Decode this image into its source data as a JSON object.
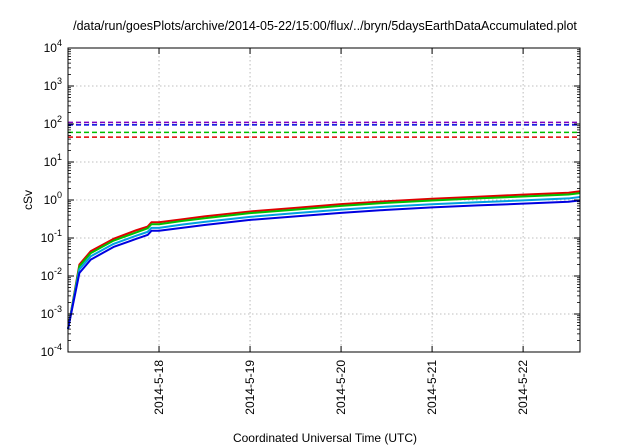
{
  "chart_data": {
    "type": "line",
    "title": "/data/run/goesPlots/archive/2014-05-22/15:00/flux/../bryn/5daysEarthDataAccumulated.plot",
    "xlabel": "Coordinated Universal Time (UTC)",
    "ylabel": "cSv",
    "yscale": "log",
    "ylim": [
      0.0001,
      10000
    ],
    "y_ticks": [
      {
        "exp": "-4",
        "value": 0.0001
      },
      {
        "exp": "-3",
        "value": 0.001
      },
      {
        "exp": "-2",
        "value": 0.01
      },
      {
        "exp": "-1",
        "value": 0.1
      },
      {
        "exp": "0",
        "value": 1
      },
      {
        "exp": "1",
        "value": 10
      },
      {
        "exp": "2",
        "value": 100
      },
      {
        "exp": "3",
        "value": 1000
      },
      {
        "exp": "4",
        "value": 10000
      }
    ],
    "xlim": [
      "2014-05-17 00:00",
      "2014-05-22 15:00"
    ],
    "x_ticks": [
      "2014-5-18",
      "2014-5-19",
      "2014-5-20",
      "2014-5-21",
      "2014-5-22"
    ],
    "grid": true,
    "x": [
      "2014-05-17 00:00",
      "2014-05-17 03:00",
      "2014-05-17 06:00",
      "2014-05-17 12:00",
      "2014-05-17 18:00",
      "2014-05-17 21:00",
      "2014-05-17 22:00",
      "2014-05-18 00:00",
      "2014-05-18 06:00",
      "2014-05-18 12:00",
      "2014-05-19 00:00",
      "2014-05-19 12:00",
      "2014-05-20 00:00",
      "2014-05-20 12:00",
      "2014-05-21 00:00",
      "2014-05-21 12:00",
      "2014-05-22 00:00",
      "2014-05-22 12:00",
      "2014-05-22 15:00"
    ],
    "series": [
      {
        "color": "#e00000",
        "width": 2,
        "dashed": false,
        "values": [
          0.0004,
          0.02,
          0.045,
          0.095,
          0.16,
          0.2,
          0.26,
          0.26,
          0.31,
          0.37,
          0.5,
          0.62,
          0.78,
          0.93,
          1.08,
          1.22,
          1.38,
          1.55,
          1.7
        ]
      },
      {
        "color": "#00c000",
        "width": 2,
        "dashed": false,
        "values": [
          0.0004,
          0.018,
          0.04,
          0.085,
          0.14,
          0.18,
          0.23,
          0.23,
          0.28,
          0.33,
          0.45,
          0.56,
          0.7,
          0.84,
          0.97,
          1.1,
          1.24,
          1.4,
          1.52
        ]
      },
      {
        "color": "#00a0e0",
        "width": 2,
        "dashed": false,
        "values": [
          0.0004,
          0.015,
          0.033,
          0.07,
          0.115,
          0.145,
          0.185,
          0.185,
          0.225,
          0.265,
          0.36,
          0.45,
          0.56,
          0.67,
          0.77,
          0.87,
          0.98,
          1.1,
          1.2
        ]
      },
      {
        "color": "#0000e0",
        "width": 2,
        "dashed": false,
        "values": [
          0.0004,
          0.012,
          0.027,
          0.058,
          0.095,
          0.12,
          0.155,
          0.155,
          0.185,
          0.22,
          0.3,
          0.37,
          0.46,
          0.55,
          0.64,
          0.72,
          0.8,
          0.9,
          0.98
        ]
      },
      {
        "color": "#e00000",
        "width": 1.5,
        "dashed": true,
        "constant": 45
      },
      {
        "color": "#00c000",
        "width": 1.5,
        "dashed": true,
        "constant": 60
      },
      {
        "color": "#0000e0",
        "width": 1.5,
        "dashed": true,
        "constant": 95
      },
      {
        "color": "#8000c0",
        "width": 1.5,
        "dashed": true,
        "constant": 110
      }
    ]
  }
}
